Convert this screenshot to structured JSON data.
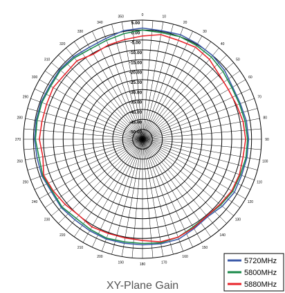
{
  "chart_data": {
    "type": "polar-line",
    "title": "XY-Plane Gain",
    "angle_ticks": [
      0,
      10,
      20,
      30,
      40,
      50,
      60,
      70,
      80,
      90,
      100,
      110,
      120,
      130,
      140,
      150,
      160,
      170,
      180,
      190,
      200,
      210,
      220,
      230,
      240,
      250,
      260,
      270,
      280,
      290,
      300,
      310,
      320,
      330,
      340,
      350
    ],
    "radial_ticks": [
      "5.00",
      "0.00",
      "-5.00",
      "-10.00",
      "-15.00",
      "-20.00",
      "-25.00",
      "-30.00",
      "-35.00",
      "-40.00",
      "-45.00",
      "-50.00"
    ],
    "rlim": [
      -55,
      5
    ],
    "series": [
      {
        "name": "5720MHz",
        "color": "#3b5aa8",
        "angles": [
          0,
          10,
          20,
          30,
          40,
          50,
          60,
          70,
          80,
          90,
          100,
          110,
          120,
          130,
          140,
          150,
          160,
          170,
          180,
          190,
          200,
          210,
          220,
          230,
          240,
          250,
          260,
          270,
          280,
          290,
          300,
          310,
          320,
          330,
          340,
          350,
          360
        ],
        "values": [
          1.0,
          0.5,
          1.0,
          0.5,
          0.0,
          -1.0,
          -2.5,
          -2.5,
          -1.8,
          -1.5,
          -1.5,
          -1.8,
          -1.5,
          -2.5,
          -4.0,
          -3.0,
          -1.5,
          -1.5,
          -1.8,
          -1.8,
          -1.5,
          -1.8,
          -2.0,
          -1.5,
          -2.0,
          -1.0,
          -1.0,
          -0.5,
          -0.5,
          -0.5,
          -1.0,
          -0.5,
          -0.8,
          -1.5,
          -1.0,
          0.5,
          1.0
        ]
      },
      {
        "name": "5800MHz",
        "color": "#1a8a4a",
        "angles": [
          0,
          10,
          20,
          30,
          40,
          50,
          60,
          70,
          80,
          90,
          100,
          110,
          120,
          130,
          140,
          150,
          160,
          170,
          180,
          190,
          200,
          210,
          220,
          230,
          240,
          250,
          260,
          270,
          280,
          290,
          300,
          310,
          320,
          330,
          340,
          350,
          360
        ],
        "values": [
          0.0,
          -0.5,
          0.0,
          -0.5,
          -1.0,
          -2.0,
          -3.0,
          -3.0,
          -2.5,
          -2.0,
          -2.0,
          -2.5,
          -2.5,
          -3.5,
          -4.5,
          -4.0,
          -2.5,
          -2.0,
          -2.5,
          -2.5,
          -2.0,
          -2.5,
          -3.0,
          -2.0,
          -2.5,
          -1.5,
          -2.0,
          -1.0,
          -1.0,
          -1.0,
          -1.5,
          -1.0,
          -1.5,
          -2.5,
          -2.0,
          -1.0,
          0.0
        ]
      },
      {
        "name": "5880MHz",
        "color": "#e8242a",
        "angles": [
          0,
          10,
          20,
          30,
          40,
          50,
          60,
          70,
          80,
          90,
          100,
          110,
          120,
          130,
          140,
          150,
          160,
          170,
          180,
          190,
          200,
          210,
          220,
          230,
          240,
          250,
          260,
          270,
          280,
          290,
          300,
          310,
          320,
          330,
          340,
          350,
          360
        ],
        "values": [
          -3.0,
          -1.5,
          -2.0,
          -1.5,
          -2.5,
          -4.5,
          -5.0,
          -4.5,
          -3.5,
          -3.0,
          -3.5,
          -3.0,
          -3.0,
          -4.0,
          -4.5,
          -3.5,
          -2.5,
          -2.5,
          -4.0,
          -4.5,
          -4.5,
          -4.0,
          -5.0,
          -4.0,
          -3.0,
          -2.0,
          -4.0,
          -3.0,
          -3.5,
          -3.5,
          -3.0,
          -4.0,
          -3.5,
          -5.5,
          -4.5,
          -4.0,
          -3.0
        ]
      }
    ],
    "legend_position": "bottom-right",
    "grid": true
  }
}
